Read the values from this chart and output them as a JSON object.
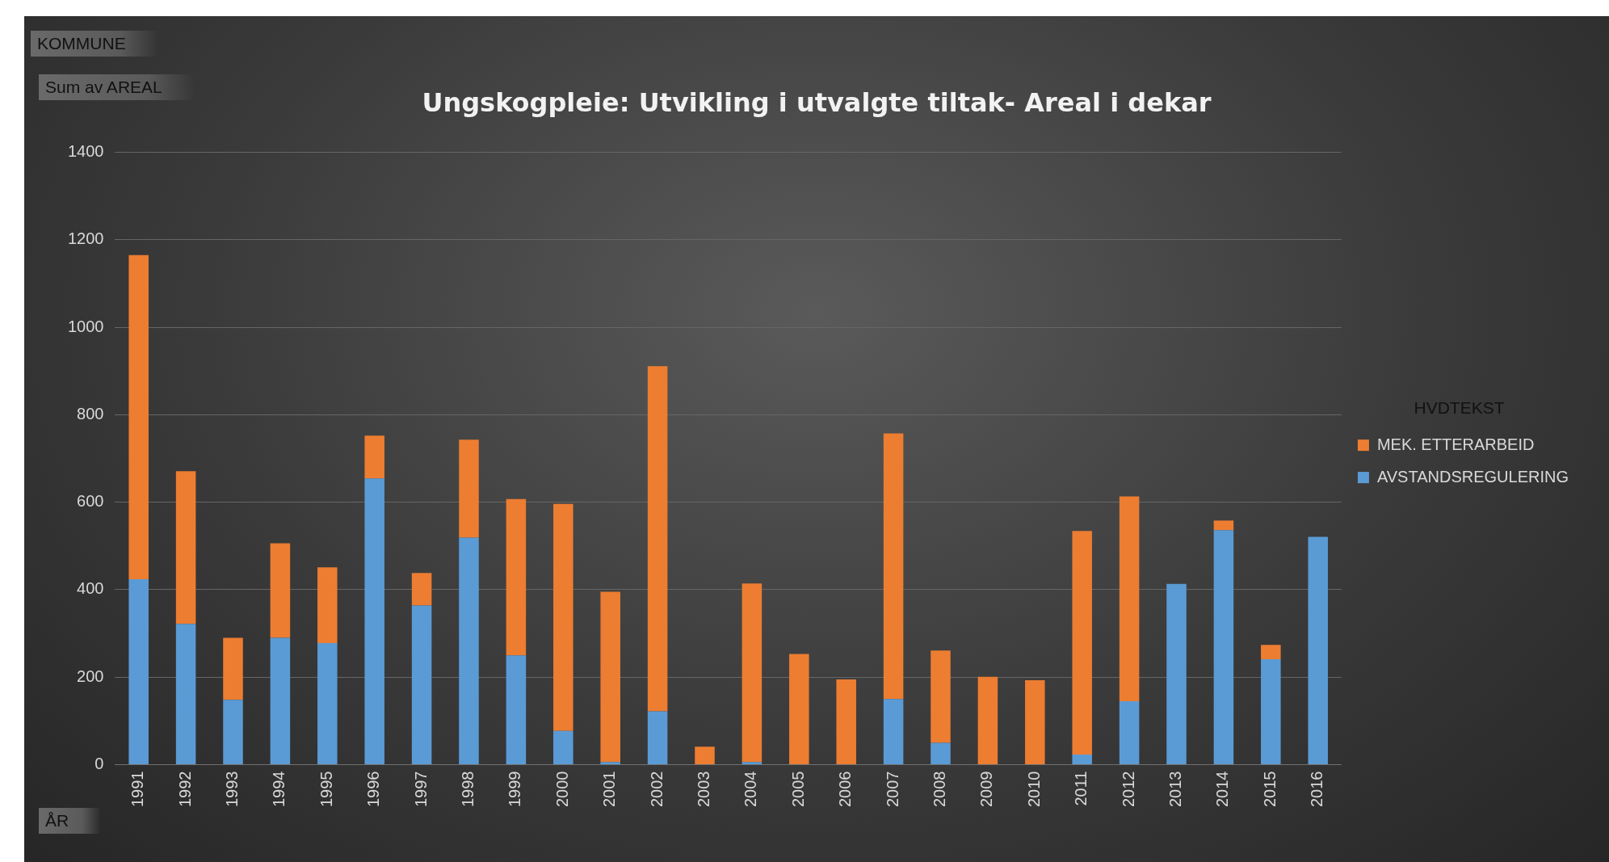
{
  "chart_data": {
    "type": "bar",
    "title": "Ungskogpleie: Utvikling i utvalgte tiltak- Areal i dekar",
    "categories": [
      "1991",
      "1992",
      "1993",
      "1994",
      "1995",
      "1996",
      "1997",
      "1998",
      "1999",
      "2000",
      "2001",
      "2002",
      "2003",
      "2004",
      "2005",
      "2006",
      "2007",
      "2008",
      "2009",
      "2010",
      "2011",
      "2012",
      "2013",
      "2014",
      "2015",
      "2016"
    ],
    "stacked": true,
    "series": [
      {
        "name": "AVSTANDSREGULERING",
        "color": "#5b9bd5",
        "values": [
          424,
          322,
          148,
          290,
          278,
          654,
          364,
          519,
          250,
          77,
          6,
          122,
          0,
          6,
          0,
          0,
          150,
          50,
          0,
          0,
          23,
          145,
          413,
          536,
          241,
          521
        ]
      },
      {
        "name": "MEK. ETTERARBEID",
        "color": "#ed7d31",
        "values": [
          741,
          349,
          142,
          216,
          173,
          98,
          74,
          224,
          357,
          519,
          389,
          789,
          41,
          408,
          253,
          195,
          607,
          211,
          201,
          193,
          511,
          468,
          0,
          22,
          33,
          0
        ]
      }
    ],
    "ylim": [
      0,
      1400
    ],
    "yticks": [
      0,
      200,
      400,
      600,
      800,
      1000,
      1200,
      1400
    ],
    "grid": "y",
    "legend": "right",
    "legend_title": "HVDTEKST",
    "annotations": [
      "KOMMUNE",
      "Sum av AREAL",
      "ÅR"
    ]
  }
}
